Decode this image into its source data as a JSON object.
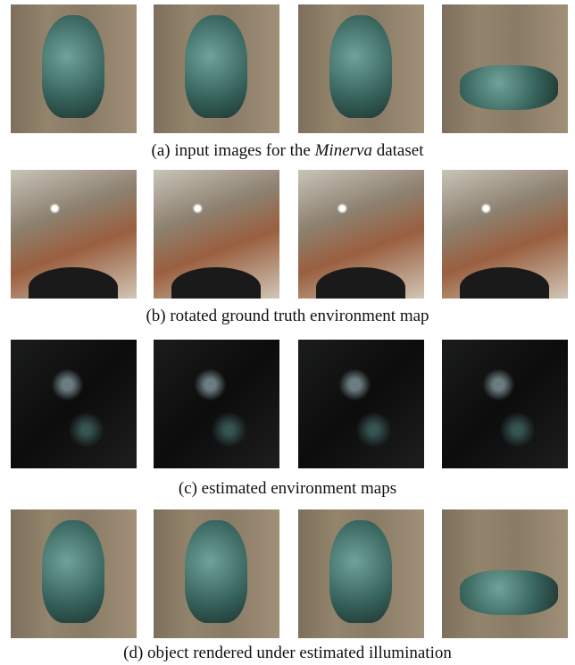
{
  "panels": [
    {
      "caption": [
        "(a) input images for the ",
        "Minerva",
        " dataset"
      ]
    },
    {
      "caption": [
        "(b) rotated ground truth environment map"
      ]
    },
    {
      "caption": [
        "(c) estimated environment maps"
      ]
    },
    {
      "caption": [
        "(d) object rendered under estimated illumination"
      ]
    }
  ]
}
